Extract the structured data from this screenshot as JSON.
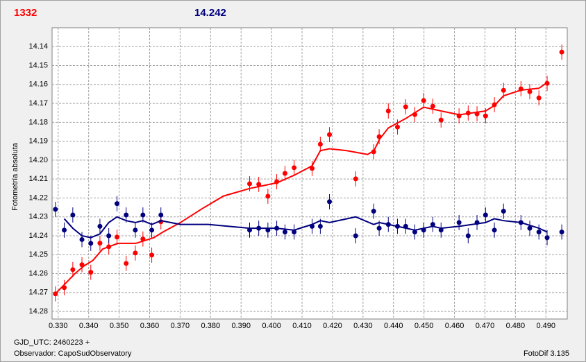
{
  "chart_data": {
    "type": "scatter",
    "header_left": "1332",
    "header_right": "14.242",
    "y_label": "Fotometría absoluta",
    "footer_date": "GJD_UTC: 2460223 +",
    "footer_observer": "Observador: CapoSudObservatory",
    "footer_version": "FotoDif 3.135",
    "grid": true,
    "xlim": [
      0.328,
      0.497
    ],
    "ylim": [
      14.284,
      14.13
    ],
    "xticks": [
      {
        "value": 0.33,
        "label": "0.330"
      },
      {
        "value": 0.34,
        "label": "0.340"
      },
      {
        "value": 0.35,
        "label": "0.350"
      },
      {
        "value": 0.36,
        "label": "0.360"
      },
      {
        "value": 0.37,
        "label": "0.370"
      },
      {
        "value": 0.38,
        "label": "0.380"
      },
      {
        "value": 0.39,
        "label": "0.390"
      },
      {
        "value": 0.4,
        "label": "0.400"
      },
      {
        "value": 0.41,
        "label": "0.410"
      },
      {
        "value": 0.42,
        "label": "0.420"
      },
      {
        "value": 0.43,
        "label": "0.430"
      },
      {
        "value": 0.44,
        "label": "0.440"
      },
      {
        "value": 0.45,
        "label": "0.450"
      },
      {
        "value": 0.46,
        "label": "0.460"
      },
      {
        "value": 0.47,
        "label": "0.470"
      },
      {
        "value": 0.48,
        "label": "0.480"
      },
      {
        "value": 0.49,
        "label": "0.490"
      }
    ],
    "yticks": [
      14.14,
      14.15,
      14.16,
      14.17,
      14.18,
      14.19,
      {
        "value": 14.2,
        "label": "14.20"
      },
      14.21,
      14.22,
      14.23,
      14.24,
      14.25,
      14.26,
      14.27,
      14.28
    ],
    "series": [
      {
        "color": "#ff0000",
        "error": 0.004,
        "x": [
          0.3291,
          0.332,
          0.3348,
          0.3378,
          0.3407,
          0.3437,
          0.3466,
          0.3493,
          0.3523,
          0.3553,
          0.3578,
          0.3607,
          0.3637,
          0.3928,
          0.3958,
          0.3988,
          0.4017,
          0.4044,
          0.4074,
          0.4133,
          0.416,
          0.419,
          0.4276,
          0.4335,
          0.4353,
          0.4383,
          0.4413,
          0.444,
          0.447,
          0.4499,
          0.4529,
          0.4556,
          0.4615,
          0.4645,
          0.4674,
          0.4702,
          0.4731,
          0.4761,
          0.4818,
          0.4847,
          0.4877,
          0.4904,
          0.4952
        ],
        "values": [
          14.2707,
          14.2674,
          14.2579,
          14.2553,
          14.2593,
          14.2439,
          14.2458,
          14.2407,
          14.2546,
          14.2491,
          14.2417,
          14.2502,
          14.2326,
          14.2125,
          14.2128,
          14.2191,
          14.2114,
          14.207,
          14.204,
          14.2044,
          14.1916,
          14.1865,
          14.2099,
          14.1956,
          14.1876,
          14.174,
          14.1825,
          14.1718,
          14.1759,
          14.1685,
          14.1715,
          14.1788,
          14.1766,
          14.1751,
          14.1755,
          14.1766,
          14.1707,
          14.1631,
          14.1623,
          14.1638,
          14.1671,
          14.1594,
          14.1429
        ],
        "fit_x": [
          0.3295,
          0.3355,
          0.3384,
          0.3414,
          0.3446,
          0.3496,
          0.3555,
          0.3614,
          0.3644,
          0.3701,
          0.3769,
          0.3842,
          0.3928,
          0.4017,
          0.4074,
          0.4133,
          0.416,
          0.419,
          0.4247,
          0.4315,
          0.4336,
          0.4354,
          0.4383,
          0.444,
          0.4499,
          0.4556,
          0.4616,
          0.4702,
          0.4732,
          0.4761,
          0.4818,
          0.4877,
          0.4904
        ],
        "fit_values": [
          14.27,
          14.26,
          14.256,
          14.253,
          14.247,
          14.244,
          14.244,
          14.241,
          14.238,
          14.233,
          14.226,
          14.219,
          14.215,
          14.212,
          14.208,
          14.203,
          14.195,
          14.194,
          14.195,
          14.197,
          14.195,
          14.189,
          14.183,
          14.178,
          14.172,
          14.174,
          14.176,
          14.174,
          14.171,
          14.166,
          14.163,
          14.162,
          14.159
        ]
      },
      {
        "color": "#00007f",
        "error": 0.004,
        "x": [
          0.3291,
          0.332,
          0.3348,
          0.3378,
          0.3407,
          0.3437,
          0.3466,
          0.3493,
          0.3523,
          0.3553,
          0.3578,
          0.3607,
          0.3637,
          0.3928,
          0.3958,
          0.3988,
          0.4017,
          0.4044,
          0.4074,
          0.4133,
          0.416,
          0.419,
          0.4276,
          0.4335,
          0.4353,
          0.4383,
          0.4413,
          0.444,
          0.447,
          0.4499,
          0.4529,
          0.4556,
          0.4615,
          0.4645,
          0.4674,
          0.4702,
          0.4731,
          0.4761,
          0.4818,
          0.4847,
          0.4877,
          0.4904,
          0.4952
        ],
        "values": [
          14.226,
          14.237,
          14.229,
          14.242,
          14.244,
          14.235,
          14.24,
          14.223,
          14.229,
          14.237,
          14.229,
          14.237,
          14.229,
          14.237,
          14.236,
          14.237,
          14.236,
          14.238,
          14.238,
          14.235,
          14.235,
          14.222,
          14.24,
          14.227,
          14.236,
          14.234,
          14.235,
          14.235,
          14.238,
          14.237,
          14.234,
          14.237,
          14.233,
          14.24,
          14.233,
          14.229,
          14.237,
          14.227,
          14.233,
          14.236,
          14.238,
          14.241,
          14.238
        ],
        "fit_x": [
          0.332,
          0.3348,
          0.3378,
          0.3407,
          0.3437,
          0.3466,
          0.3493,
          0.3523,
          0.3553,
          0.3578,
          0.3607,
          0.3637,
          0.3701,
          0.3792,
          0.3928,
          0.4017,
          0.4074,
          0.4133,
          0.416,
          0.419,
          0.4276,
          0.4335,
          0.4353,
          0.4413,
          0.447,
          0.4529,
          0.4556,
          0.4615,
          0.4702,
          0.4731,
          0.4761,
          0.4818,
          0.4877,
          0.4904
        ],
        "fit_values": [
          14.231,
          14.236,
          14.24,
          14.241,
          14.239,
          14.233,
          14.23,
          14.232,
          14.233,
          14.232,
          14.234,
          14.232,
          14.234,
          14.234,
          14.236,
          14.236,
          14.237,
          14.234,
          14.232,
          14.233,
          14.23,
          14.234,
          14.233,
          14.235,
          14.237,
          14.235,
          14.236,
          14.235,
          14.233,
          14.231,
          14.232,
          14.233,
          14.236,
          14.238
        ]
      }
    ]
  }
}
